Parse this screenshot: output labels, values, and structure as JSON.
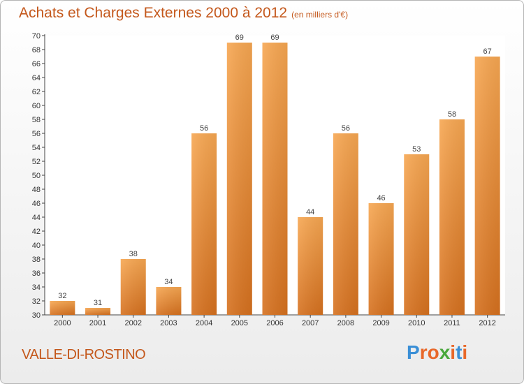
{
  "chart_data": {
    "type": "bar",
    "title": "Achats et Charges Externes 2000 à 2012",
    "subtitle": "(en milliers d'€)",
    "categories": [
      "2000",
      "2001",
      "2002",
      "2003",
      "2004",
      "2005",
      "2006",
      "2007",
      "2008",
      "2009",
      "2010",
      "2011",
      "2012"
    ],
    "values": [
      32,
      31,
      38,
      34,
      56,
      69,
      69,
      44,
      56,
      46,
      53,
      58,
      67
    ],
    "ylim": [
      30,
      70
    ],
    "yticks": [
      30,
      32,
      34,
      36,
      38,
      40,
      42,
      44,
      46,
      48,
      50,
      52,
      54,
      56,
      58,
      60,
      62,
      64,
      66,
      68,
      70
    ],
    "grid": false,
    "bar_color": "#f0913a"
  },
  "footer": {
    "commune": "VALLE-DI-ROSTINO"
  },
  "logo": {
    "letters": [
      "P",
      "r",
      "o",
      "x",
      "i",
      "t",
      "i"
    ],
    "colors": [
      "#3a8fd6",
      "#e8682a",
      "#e8682a",
      "#49a83c",
      "#e8682a",
      "#3a8fd6",
      "#e8682a"
    ]
  }
}
